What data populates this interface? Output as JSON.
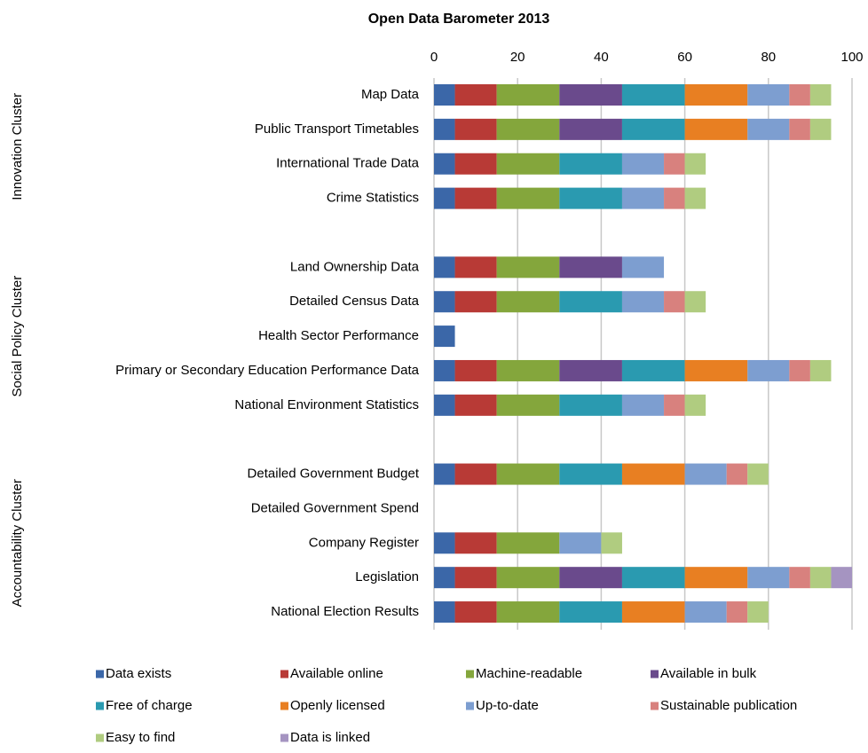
{
  "chart_data": {
    "type": "stacked_barh",
    "title": "Open Data Barometer 2013",
    "groups": [
      "Innovation Cluster",
      "Social Policy Cluster",
      "Accountability Cluster"
    ],
    "categories": [
      "Map Data",
      "Public Transport Timetables",
      "International Trade Data",
      "Crime Statistics",
      null,
      "Land Ownership Data",
      "Detailed Census Data",
      "Health Sector Performance",
      "Primary or Secondary Education Performance Data",
      "National Environment Statistics",
      null,
      "Detailed Government Budget",
      "Detailed Government Spend",
      "Company Register",
      "Legislation",
      "National Election Results"
    ],
    "series": [
      {
        "name": "Data exists",
        "color": "#3b67a8",
        "values": [
          5,
          5,
          5,
          5,
          null,
          5,
          5,
          5,
          5,
          5,
          null,
          5,
          0,
          5,
          5,
          5
        ]
      },
      {
        "name": "Available online",
        "color": "#b83a36",
        "values": [
          10,
          10,
          10,
          10,
          null,
          10,
          10,
          0,
          10,
          10,
          null,
          10,
          0,
          10,
          10,
          10
        ]
      },
      {
        "name": "Machine-readable",
        "color": "#84a63c",
        "values": [
          15,
          15,
          15,
          15,
          null,
          15,
          15,
          0,
          15,
          15,
          null,
          15,
          0,
          15,
          15,
          15
        ]
      },
      {
        "name": "Available in bulk",
        "color": "#6a4a8c",
        "values": [
          15,
          15,
          0,
          0,
          null,
          15,
          0,
          0,
          15,
          0,
          null,
          0,
          0,
          0,
          15,
          0
        ]
      },
      {
        "name": "Free of charge",
        "color": "#2a9ab0",
        "values": [
          15,
          15,
          15,
          15,
          null,
          0,
          15,
          0,
          15,
          15,
          null,
          15,
          0,
          0,
          15,
          15
        ]
      },
      {
        "name": "Openly licensed",
        "color": "#e87f22",
        "values": [
          15,
          15,
          0,
          0,
          null,
          0,
          0,
          0,
          15,
          0,
          null,
          15,
          0,
          0,
          15,
          15
        ]
      },
      {
        "name": "Up-to-date",
        "color": "#7d9ed0",
        "values": [
          10,
          10,
          10,
          10,
          null,
          10,
          10,
          0,
          10,
          10,
          null,
          10,
          0,
          10,
          10,
          10
        ]
      },
      {
        "name": "Sustainable publication",
        "color": "#d8817e",
        "values": [
          5,
          5,
          5,
          5,
          null,
          0,
          5,
          0,
          5,
          5,
          null,
          5,
          0,
          0,
          5,
          5
        ]
      },
      {
        "name": "Easy to find",
        "color": "#b0cc80",
        "values": [
          5,
          5,
          5,
          5,
          null,
          0,
          5,
          0,
          5,
          5,
          null,
          5,
          0,
          5,
          5,
          5
        ]
      },
      {
        "name": "Data is linked",
        "color": "#a594c1",
        "values": [
          0,
          0,
          0,
          0,
          null,
          0,
          0,
          0,
          0,
          0,
          null,
          0,
          0,
          0,
          5,
          0
        ]
      }
    ],
    "xlim": [
      0,
      100
    ],
    "xticks": [
      0,
      20,
      40,
      60,
      80,
      100
    ],
    "grid": true,
    "legend": "bottom"
  }
}
